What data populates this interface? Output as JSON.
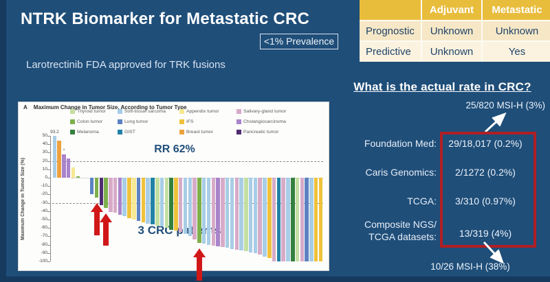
{
  "slide": {
    "title": "NTRK Biomarker for Metastatic CRC",
    "prevalence_badge": "<1% Prevalence",
    "subtitle": "Larotrectinib FDA approved for TRK fusions",
    "background_color": "#1F4E79",
    "accent_color": "#16395E"
  },
  "biomarker_table": {
    "columns": [
      "",
      "Adjuvant",
      "Metastatic"
    ],
    "rows": [
      {
        "label": "Prognostic",
        "adjuvant": "Unknown",
        "metastatic": "Unknown"
      },
      {
        "label": "Predictive",
        "adjuvant": "Unknown",
        "metastatic": "Yes"
      }
    ],
    "header_color": "#E9BD3C"
  },
  "rate_panel": {
    "heading": "What is the actual rate in CRC?",
    "msi_high_top": "25/820 MSI-H (3%)",
    "rows": [
      {
        "label": "Foundation Med:",
        "value": "29/18,017 (0.2%)"
      },
      {
        "label": "Caris Genomics:",
        "value": "2/1272 (0.2%)"
      },
      {
        "label": "TCGA:",
        "value": "3/310 (0.97%)"
      },
      {
        "label": "Composite NGS/\nTCGA datasets:",
        "value": "13/319 (4%)"
      }
    ],
    "msi_high_bottom": "10/26 MSI-H (38%)",
    "highlight_box_color": "#B01F24"
  },
  "chart_data": {
    "type": "bar",
    "panel_label": "A",
    "title": "Maximum Change in Tumor Size, According to Tumor Type",
    "ylabel": "Maximum Change in Tumor Size (%)",
    "ylim": [
      -100,
      50
    ],
    "yticks": [
      50,
      40,
      30,
      20,
      10,
      0,
      -10,
      -20,
      -30,
      -40,
      -50,
      -60,
      -70,
      -80,
      -90,
      -100
    ],
    "reference_lines": [
      {
        "y": 20,
        "style": "dashed"
      },
      {
        "y": 0,
        "style": "dotted"
      },
      {
        "y": -30,
        "style": "dashed"
      }
    ],
    "annotations": {
      "rr": "RR 62%",
      "crc": "3 CRC patients",
      "dagger": "†",
      "arrow_color": "#D01818"
    },
    "legend_columns": [
      [
        {
          "label": "Thyroid tumor",
          "key": "thyroid"
        },
        {
          "label": "Colon tumor",
          "key": "colon"
        },
        {
          "label": "Melanoma",
          "key": "melanoma"
        }
      ],
      [
        {
          "label": "Soft-tissue sarcoma",
          "key": "sts"
        },
        {
          "label": "Lung tumor",
          "key": "lung"
        },
        {
          "label": "GIST",
          "key": "gist"
        }
      ],
      [
        {
          "label": "Appendix tumor",
          "key": "appendix"
        },
        {
          "label": "IFS",
          "key": "ifs"
        },
        {
          "label": "Breast tumor",
          "key": "breast"
        }
      ],
      [
        {
          "label": "Salivary-gland tumor",
          "key": "salivary"
        },
        {
          "label": "Cholangiocarcinoma",
          "key": "chol"
        },
        {
          "label": "Pancreatic tumor",
          "key": "pancreatic"
        }
      ]
    ],
    "palette": {
      "thyroid": "#C3DFA2",
      "colon": "#7DB04B",
      "melanoma": "#35803F",
      "sts": "#A8CDE6",
      "lung": "#5C82C2",
      "gist": "#2282A6",
      "appendix": "#F6E892",
      "ifs": "#EFC23B",
      "breast": "#EDA13E",
      "salivary": "#D7ABC8",
      "chol": "#A984CB",
      "pancreatic": "#502D72"
    },
    "bars": [
      {
        "value": 93.2,
        "display": 50,
        "key": "sts",
        "label": "93.2"
      },
      {
        "value": 44,
        "key": "breast"
      },
      {
        "value": 28,
        "key": "chol",
        "label": "*"
      },
      {
        "value": 23,
        "key": "chol"
      },
      {
        "value": 12,
        "key": "appendix"
      },
      {
        "value": 2,
        "key": "colon"
      },
      {
        "gap": true
      },
      {
        "gap": true
      },
      {
        "value": -20,
        "key": "lung"
      },
      {
        "value": -24,
        "key": "colon",
        "arrow": true
      },
      {
        "value": -33,
        "key": "pancreatic"
      },
      {
        "value": -36,
        "key": "colon",
        "arrow": true
      },
      {
        "value": -41,
        "key": "salivary"
      },
      {
        "value": -42,
        "key": "salivary"
      },
      {
        "value": -44,
        "key": "chol"
      },
      {
        "value": -46,
        "key": "sts"
      },
      {
        "value": -48,
        "key": "ifs"
      },
      {
        "value": -50,
        "key": "appendix"
      },
      {
        "value": -52,
        "key": "lung"
      },
      {
        "value": -53,
        "key": "ifs"
      },
      {
        "value": -55,
        "key": "sts"
      },
      {
        "value": -56,
        "key": "gist"
      },
      {
        "value": -57,
        "key": "thyroid"
      },
      {
        "value": -58,
        "key": "sts"
      },
      {
        "value": -60,
        "key": "thyroid"
      },
      {
        "value": -62,
        "key": "melanoma"
      },
      {
        "value": -63,
        "key": "ifs"
      },
      {
        "value": -65,
        "key": "salivary"
      },
      {
        "value": -67,
        "key": "sts"
      },
      {
        "value": -70,
        "key": "sts"
      },
      {
        "value": -74,
        "key": "salivary"
      },
      {
        "value": -78,
        "key": "colon",
        "arrow": true
      },
      {
        "value": -79,
        "key": "sts"
      },
      {
        "value": -80,
        "key": "sts"
      },
      {
        "value": -81,
        "key": "salivary"
      },
      {
        "value": -82,
        "key": "chol"
      },
      {
        "value": -83,
        "key": "salivary"
      },
      {
        "value": -84,
        "key": "sts"
      },
      {
        "value": -85,
        "key": "sts"
      },
      {
        "value": -86,
        "key": "salivary"
      },
      {
        "value": -87,
        "key": "sts"
      },
      {
        "value": -88,
        "key": "thyroid"
      },
      {
        "value": -89,
        "key": "sts"
      },
      {
        "value": -90,
        "key": "sts"
      },
      {
        "value": -92,
        "key": "salivary"
      },
      {
        "value": -94,
        "key": "sts"
      },
      {
        "value": -96,
        "key": "ifs"
      },
      {
        "value": -100,
        "key": "salivary"
      },
      {
        "value": -100,
        "key": "gist"
      },
      {
        "value": -100,
        "key": "salivary"
      },
      {
        "value": -100,
        "key": "sts"
      },
      {
        "value": -100,
        "key": "melanoma"
      },
      {
        "value": -100,
        "key": "thyroid"
      },
      {
        "value": -100,
        "key": "salivary"
      },
      {
        "value": -100,
        "key": "lung"
      },
      {
        "value": -100,
        "key": "sts"
      },
      {
        "value": -100,
        "key": "ifs"
      },
      {
        "value": -100,
        "key": "ifs"
      }
    ]
  }
}
